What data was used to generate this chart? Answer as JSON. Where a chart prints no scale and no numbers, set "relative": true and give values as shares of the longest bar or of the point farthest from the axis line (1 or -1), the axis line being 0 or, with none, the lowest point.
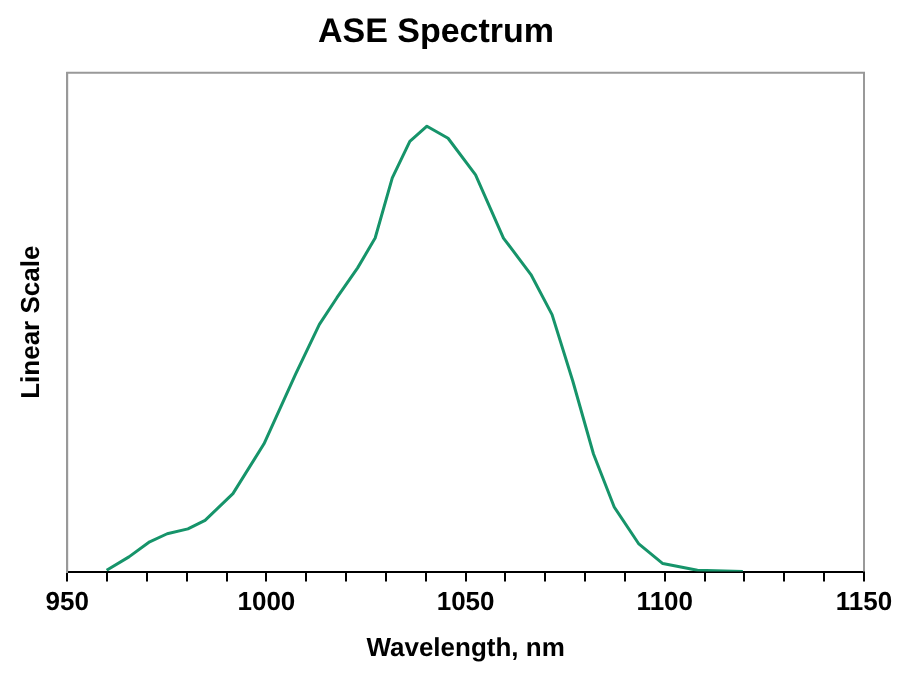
{
  "chart_data": {
    "type": "line",
    "title": "ASE Spectrum",
    "xlabel": "Wavelength, nm",
    "ylabel": "Linear Scale",
    "relative": true,
    "xlim": [
      950,
      1150
    ],
    "xticks": [
      950,
      {
        "value": 960,
        "label": null
      },
      {
        "value": 970,
        "label": null
      },
      {
        "value": 980,
        "label": null
      },
      {
        "value": 990,
        "label": null
      },
      1000,
      {
        "value": 1010,
        "label": null
      },
      {
        "value": 1020,
        "label": null
      },
      {
        "value": 1030,
        "label": null
      },
      {
        "value": 1040,
        "label": null
      },
      1050,
      {
        "value": 1060,
        "label": null
      },
      {
        "value": 1070,
        "label": null
      },
      {
        "value": 1080,
        "label": null
      },
      {
        "value": 1090,
        "label": null
      },
      1100,
      {
        "value": 1110,
        "label": null
      },
      {
        "value": 1120,
        "label": null
      },
      {
        "value": 1130,
        "label": null
      },
      {
        "value": 1140,
        "label": null
      },
      1150
    ],
    "grid": false,
    "legend": false,
    "marker": "none",
    "line_style": "solid",
    "series": [
      {
        "color": "#16946a",
        "x": [
          959.9,
          965.5,
          970.7,
          975.1,
          980.3,
          984.6,
          991.6,
          999.4,
          1007.3,
          1013.3,
          1017.7,
          1022.9,
          1027.3,
          1031.6,
          1036,
          1040.3,
          1045.6,
          1052.5,
          1059.5,
          1066.4,
          1071.7,
          1076.9,
          1082.1,
          1087.3,
          1093.4,
          1099.5,
          1108.2,
          1119.6
        ],
        "values": [
          0.003,
          0.033,
          0.067,
          0.085,
          0.096,
          0.115,
          0.175,
          0.287,
          0.443,
          0.555,
          0.615,
          0.682,
          0.749,
          0.884,
          0.966,
          1,
          0.973,
          0.891,
          0.749,
          0.667,
          0.577,
          0.428,
          0.264,
          0.145,
          0.063,
          0.018,
          0.003,
          0
        ]
      }
    ]
  }
}
